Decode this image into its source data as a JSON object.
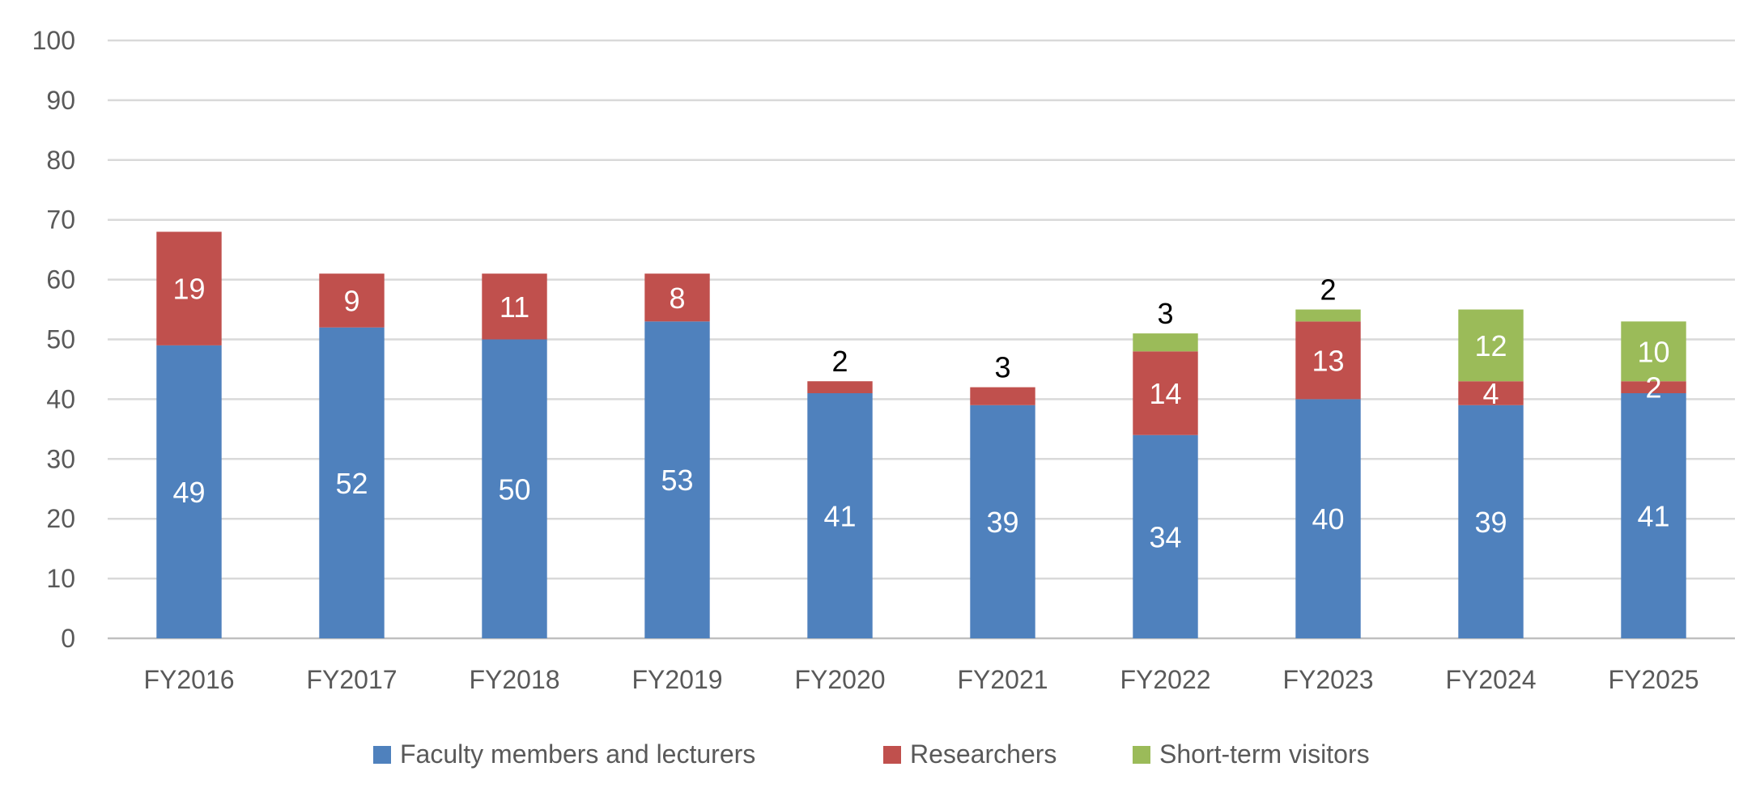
{
  "chart_data": {
    "type": "bar",
    "stacked": true,
    "title": "",
    "xlabel": "",
    "ylabel": "",
    "ylim": [
      0,
      100
    ],
    "yticks": [
      0,
      10,
      20,
      30,
      40,
      50,
      60,
      70,
      80,
      90,
      100
    ],
    "grid": true,
    "legend_position": "bottom",
    "categories": [
      "FY2016",
      "FY2017",
      "FY2018",
      "FY2019",
      "FY2020",
      "FY2021",
      "FY2022",
      "FY2023",
      "FY2024",
      "FY2025"
    ],
    "series": [
      {
        "name": "Faculty members and lecturers",
        "color": "#4F81BD",
        "values": [
          49,
          52,
          50,
          53,
          41,
          39,
          34,
          40,
          39,
          41
        ]
      },
      {
        "name": "Researchers",
        "color": "#C0504D",
        "values": [
          19,
          9,
          11,
          8,
          2,
          3,
          14,
          13,
          4,
          2
        ]
      },
      {
        "name": "Short-term visitors",
        "color": "#9BBB59",
        "values": [
          0,
          0,
          0,
          0,
          0,
          0,
          3,
          2,
          12,
          10
        ]
      }
    ]
  }
}
